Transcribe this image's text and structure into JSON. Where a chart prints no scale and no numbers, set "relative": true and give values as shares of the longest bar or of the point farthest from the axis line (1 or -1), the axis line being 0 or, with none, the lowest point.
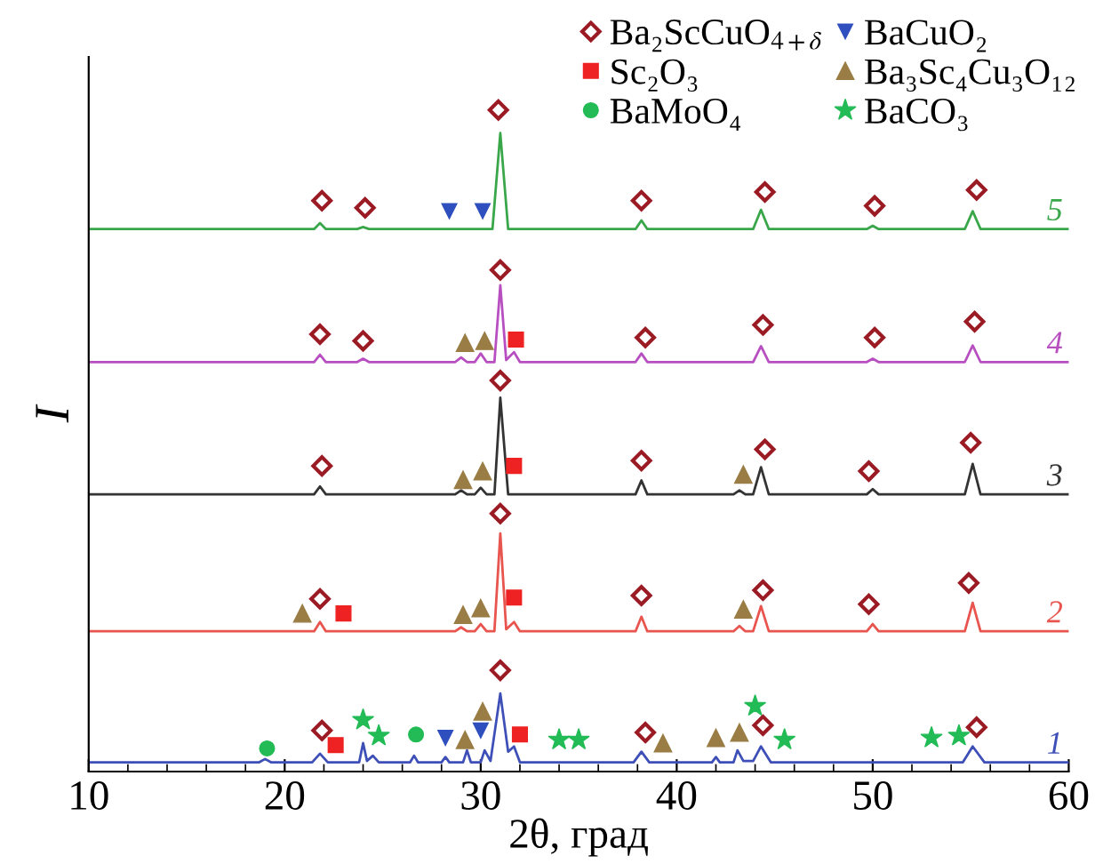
{
  "chart_data": {
    "type": "line",
    "relative": true,
    "xlabel": "2θ, град",
    "ylabel": "I",
    "xlim": [
      10,
      60
    ],
    "xticks": [
      10,
      20,
      30,
      40,
      50,
      60
    ],
    "tick_labels": "x",
    "grid": false,
    "legend": "top right",
    "series": [
      {
        "name": "5",
        "color": "#3aa64a",
        "x": [
          10,
          21.5,
          21.8,
          22.1,
          23.7,
          24,
          24.3,
          30.6,
          31,
          31.4,
          37.9,
          38.2,
          38.5,
          43.9,
          44.3,
          44.7,
          49.7,
          50,
          50.3,
          54.7,
          55.1,
          55.5,
          60
        ],
        "values": [
          0.82,
          0.82,
          0.829,
          0.82,
          0.82,
          0.823,
          0.82,
          0.82,
          0.965,
          0.82,
          0.82,
          0.833,
          0.82,
          0.82,
          0.849,
          0.82,
          0.82,
          0.825,
          0.82,
          0.82,
          0.847,
          0.82,
          0.82
        ]
      },
      {
        "name": "4",
        "color": "#b84fc0",
        "x": [
          10,
          21.5,
          21.8,
          22.1,
          23.7,
          24,
          24.3,
          28.7,
          29,
          29.3,
          29.7,
          30,
          30.3,
          30.7,
          31,
          31.3,
          31.7,
          32,
          37.9,
          38.2,
          38.5,
          43.9,
          44.3,
          44.7,
          49.7,
          50,
          50.3,
          54.7,
          55.1,
          55.5,
          60
        ],
        "values": [
          0.619,
          0.619,
          0.63,
          0.619,
          0.619,
          0.624,
          0.619,
          0.619,
          0.626,
          0.619,
          0.619,
          0.632,
          0.619,
          0.619,
          0.735,
          0.622,
          0.634,
          0.619,
          0.619,
          0.632,
          0.619,
          0.619,
          0.643,
          0.619,
          0.619,
          0.624,
          0.619,
          0.619,
          0.644,
          0.619,
          0.619
        ]
      },
      {
        "name": "3",
        "color": "#333333",
        "x": [
          10,
          21.5,
          21.8,
          22.1,
          28.7,
          29,
          29.3,
          29.7,
          30,
          30.3,
          30.7,
          31,
          31.4,
          37.9,
          38.2,
          38.5,
          42.9,
          43.2,
          43.5,
          43.9,
          44.3,
          44.7,
          49.7,
          50,
          50.3,
          54.7,
          55.1,
          55.5,
          60
        ],
        "values": [
          0.419,
          0.419,
          0.431,
          0.419,
          0.419,
          0.425,
          0.419,
          0.419,
          0.429,
          0.419,
          0.419,
          0.565,
          0.419,
          0.419,
          0.44,
          0.419,
          0.419,
          0.425,
          0.419,
          0.419,
          0.46,
          0.419,
          0.419,
          0.427,
          0.419,
          0.419,
          0.465,
          0.419,
          0.419
        ]
      },
      {
        "name": "2",
        "color": "#e8544e",
        "x": [
          10,
          21.5,
          21.8,
          22.1,
          28.7,
          29,
          29.3,
          29.7,
          30,
          30.3,
          30.7,
          31,
          31.3,
          31.7,
          32,
          37.9,
          38.2,
          38.5,
          42.9,
          43.2,
          43.5,
          43.9,
          44.3,
          44.7,
          49.7,
          50,
          50.3,
          54.7,
          55.1,
          55.5,
          60
        ],
        "values": [
          0.212,
          0.212,
          0.226,
          0.212,
          0.212,
          0.218,
          0.212,
          0.212,
          0.223,
          0.212,
          0.212,
          0.36,
          0.215,
          0.226,
          0.212,
          0.212,
          0.234,
          0.212,
          0.212,
          0.22,
          0.212,
          0.212,
          0.25,
          0.212,
          0.212,
          0.223,
          0.212,
          0.212,
          0.255,
          0.212,
          0.212
        ]
      },
      {
        "name": "1",
        "color": "#3e4fb8",
        "x": [
          10,
          18.7,
          19,
          19.3,
          21.4,
          21.8,
          22.2,
          23.8,
          24,
          24.2,
          24.5,
          24.8,
          26.4,
          26.6,
          26.8,
          28,
          28.2,
          28.4,
          29.1,
          29.3,
          29.5,
          30,
          30.2,
          30.5,
          31,
          31.4,
          31.7,
          32,
          37.8,
          38.2,
          38.6,
          41.8,
          42,
          42.2,
          42.9,
          43.1,
          43.4,
          43.9,
          44.3,
          44.8,
          54.6,
          55.1,
          55.7,
          60
        ],
        "values": [
          0.014,
          0.014,
          0.019,
          0.014,
          0.014,
          0.027,
          0.014,
          0.014,
          0.043,
          0.016,
          0.024,
          0.014,
          0.014,
          0.024,
          0.014,
          0.014,
          0.022,
          0.014,
          0.014,
          0.032,
          0.014,
          0.014,
          0.032,
          0.016,
          0.118,
          0.03,
          0.038,
          0.014,
          0.014,
          0.03,
          0.014,
          0.014,
          0.022,
          0.014,
          0.014,
          0.032,
          0.016,
          0.016,
          0.038,
          0.014,
          0.014,
          0.038,
          0.014,
          0.014
        ]
      },
      {
        "type": "scatter",
        "name": "Ba₂ScCuO$_{4+δ}$",
        "color": "#9b1b24",
        "marker": "diamond",
        "x": [
          21.9,
          24.1,
          30.9,
          38.2,
          44.5,
          50.1,
          55.3,
          21.8,
          24.0,
          31.0,
          38.4,
          44.4,
          50.1,
          55.2,
          31.0,
          21.9,
          38.2,
          44.5,
          49.8,
          55.0,
          31.0,
          21.8,
          38.2,
          44.4,
          49.8,
          54.9,
          31.0,
          21.9,
          38.4,
          44.4,
          55.3
        ],
        "values": [
          0.863,
          0.852,
          1.0,
          0.863,
          0.876,
          0.855,
          0.879,
          0.661,
          0.651,
          0.758,
          0.656,
          0.675,
          0.656,
          0.68,
          0.591,
          0.462,
          0.47,
          0.487,
          0.454,
          0.497,
          0.39,
          0.261,
          0.266,
          0.274,
          0.253,
          0.285,
          0.153,
          0.062,
          0.059,
          0.07,
          0.067
        ]
      },
      {
        "type": "scatter",
        "name": "Sc₂O₃",
        "color": "#ee2222",
        "marker": "square",
        "x": [
          31.8,
          31.7,
          23.0,
          31.7,
          22.6,
          32.0
        ],
        "values": [
          0.653,
          0.462,
          0.239,
          0.263,
          0.04,
          0.056
        ]
      },
      {
        "type": "scatter",
        "name": "BaMoO₄",
        "color": "#22bb55",
        "marker": "circle",
        "x": [
          19.1,
          26.7
        ],
        "values": [
          0.035,
          0.056
        ]
      },
      {
        "type": "scatter",
        "name": "BaCuO₂",
        "color": "#2f4fbf",
        "marker": "triangle_down",
        "x": [
          28.4,
          30.1,
          28.2,
          30.0
        ],
        "values": [
          0.847,
          0.847,
          0.051,
          0.062
        ]
      },
      {
        "type": "scatter",
        "name": "Ba₃Sc₄Cu₃O₁₂",
        "color": "#9a7d45",
        "marker": "triangle",
        "x": [
          29.2,
          30.2,
          29.1,
          30.1,
          43.4,
          20.9,
          29.1,
          30.0,
          43.4,
          30.1,
          29.2,
          39.3,
          42.0,
          43.2
        ],
        "values": [
          0.648,
          0.651,
          0.441,
          0.454,
          0.449,
          0.239,
          0.237,
          0.247,
          0.245,
          0.091,
          0.048,
          0.043,
          0.051,
          0.059
        ]
      },
      {
        "type": "scatter",
        "name": "BaCO₃",
        "color": "#22bb55",
        "marker": "star",
        "x": [
          24.0,
          24.8,
          34.0,
          35.0,
          44.0,
          45.5,
          53.0,
          54.4
        ],
        "values": [
          0.078,
          0.054,
          0.048,
          0.048,
          0.099,
          0.048,
          0.051,
          0.054
        ]
      }
    ]
  }
}
